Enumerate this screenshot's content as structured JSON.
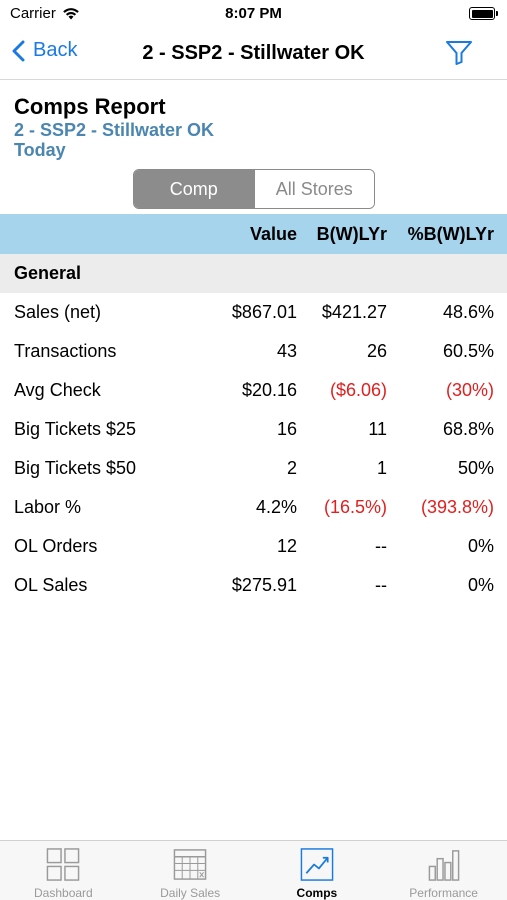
{
  "status_bar": {
    "carrier": "Carrier",
    "time": "8:07 PM"
  },
  "nav": {
    "back_label": "Back",
    "title": "2 - SSP2 - Stillwater OK"
  },
  "report": {
    "title": "Comps Report",
    "store": "2 - SSP2 - Stillwater OK",
    "period": "Today"
  },
  "segmented": {
    "options": [
      "Comp",
      "All Stores"
    ],
    "selected": "Comp"
  },
  "table": {
    "columns": [
      "Value",
      "B(W)LYr",
      "%B(W)LYr"
    ],
    "section": "General",
    "rows": [
      {
        "label": "Sales (net)",
        "value": "$867.01",
        "bw": "$421.27",
        "pct": "48.6%"
      },
      {
        "label": "Transactions",
        "value": "43",
        "bw": "26",
        "pct": "60.5%"
      },
      {
        "label": "Avg Check",
        "value": "$20.16",
        "bw": "($6.06)",
        "pct": "(30%)"
      },
      {
        "label": "Big Tickets $25",
        "value": "16",
        "bw": "11",
        "pct": "68.8%"
      },
      {
        "label": "Big Tickets $50",
        "value": "2",
        "bw": "1",
        "pct": "50%"
      },
      {
        "label": "Labor %",
        "value": "4.2%",
        "bw": "(16.5%)",
        "pct": "(393.8%)"
      },
      {
        "label": "OL Orders",
        "value": "12",
        "bw": "--",
        "pct": "0%"
      },
      {
        "label": "OL Sales",
        "value": "$275.91",
        "bw": "--",
        "pct": "0%"
      }
    ]
  },
  "colors": {
    "accent": "#1a7ae0",
    "header_bg": "#a6d4ed",
    "negative": "#e02020",
    "store_link": "#4a86b0"
  },
  "tabs": [
    {
      "label": "Dashboard",
      "icon": "dashboard-icon",
      "active": false
    },
    {
      "label": "Daily Sales",
      "icon": "calendar-grid-icon",
      "active": false
    },
    {
      "label": "Comps",
      "icon": "trend-chart-icon",
      "active": true
    },
    {
      "label": "Performance",
      "icon": "bar-chart-icon",
      "active": false
    }
  ]
}
